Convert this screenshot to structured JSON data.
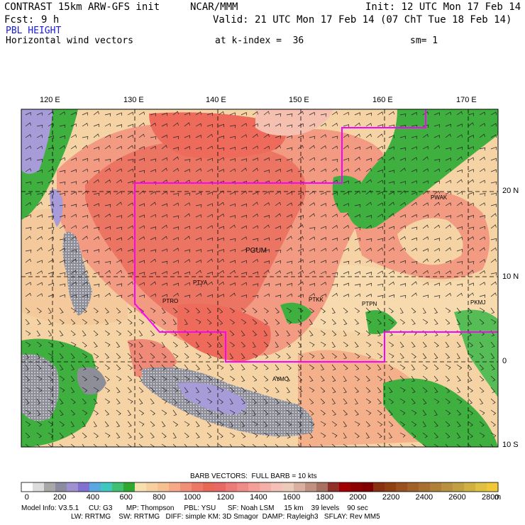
{
  "header": {
    "model": "CONTRAST 15km ARW-GFS init",
    "org": "NCAR/MMM",
    "init": "Init: 12 UTC Mon 17 Feb 14",
    "fcst_label": "Fcst:",
    "fcst_value": "9 h",
    "valid": "Valid: 21 UTC Mon 17 Feb 14 (07 ChT Tue 18 Feb 14)",
    "field": "PBL HEIGHT",
    "vectors": "Horizontal wind vectors",
    "kindex": "at k-index =  36",
    "sm": "sm= 1"
  },
  "map": {
    "lon_labels": [
      "120 E",
      "130 E",
      "140 E",
      "150 E",
      "160 E",
      "170 E"
    ],
    "lat_labels": [
      "20 N",
      "10 N",
      "0",
      "10 S"
    ],
    "stations": [
      {
        "id": "PGUM",
        "label": "PGUM"
      },
      {
        "id": "PTYA",
        "label": "PTYA"
      },
      {
        "id": "PTRO",
        "label": "PTRO"
      },
      {
        "id": "PTKK",
        "label": "PTKK"
      },
      {
        "id": "PTPN",
        "label": "PTPN"
      },
      {
        "id": "PKMJ",
        "label": "PKMJ"
      },
      {
        "id": "PWAK",
        "label": "PWAK"
      },
      {
        "id": "AYMO",
        "label": "AYMO"
      }
    ],
    "colors": {
      "ocean_base": "#f6d3a4",
      "land_gray": "#8e8e98",
      "land_purple": "#a79cd8",
      "green": "#3fb03f",
      "salmon": "#f08a78",
      "red": "#ee6a5a",
      "boundary": "#ff00ff"
    }
  },
  "colorbar": {
    "title": "BARB VECTORS:  FULL BARB = 10 kts",
    "tick_labels": [
      "0",
      "200",
      "400",
      "600",
      "800",
      "1000",
      "1200",
      "1400",
      "1600",
      "1800",
      "2000",
      "2200",
      "2400",
      "2600",
      "2800"
    ],
    "unit": "m",
    "colors": [
      "#ffffff",
      "#dcdcdc",
      "#a8a8a8",
      "#8c8ca0",
      "#a090d0",
      "#8070d0",
      "#5aa8e0",
      "#40c8c0",
      "#40c070",
      "#30a830",
      "#f6e0b0",
      "#f6d0a0",
      "#f6c090",
      "#f6a888",
      "#f09078",
      "#ec7868",
      "#e86858",
      "#e86868",
      "#ec7a78",
      "#f08c88",
      "#f4a098",
      "#f4b0a8",
      "#f4c0b8",
      "#eccaba",
      "#d8b0a0",
      "#c09080",
      "#a87060",
      "#903028",
      "#a00000",
      "#8c0000",
      "#800000",
      "#883010",
      "#904010",
      "#985020",
      "#a06028",
      "#a87030",
      "#b08038",
      "#b89040",
      "#c0a040",
      "#d0b040",
      "#e0c040",
      "#f0c838"
    ]
  },
  "footer": {
    "line1": "Model Info: V3.5.1     CU: G3       MP: Thompson     PBL: YSU      SF: Noah LSM     15 km    39 levels    90 sec",
    "line2": "LW: RRTMG    SW: RRTMG   DIFF: simple KM: 3D Smagor  DAMP: Rayleigh3   SFLAY: Rev MM5"
  }
}
